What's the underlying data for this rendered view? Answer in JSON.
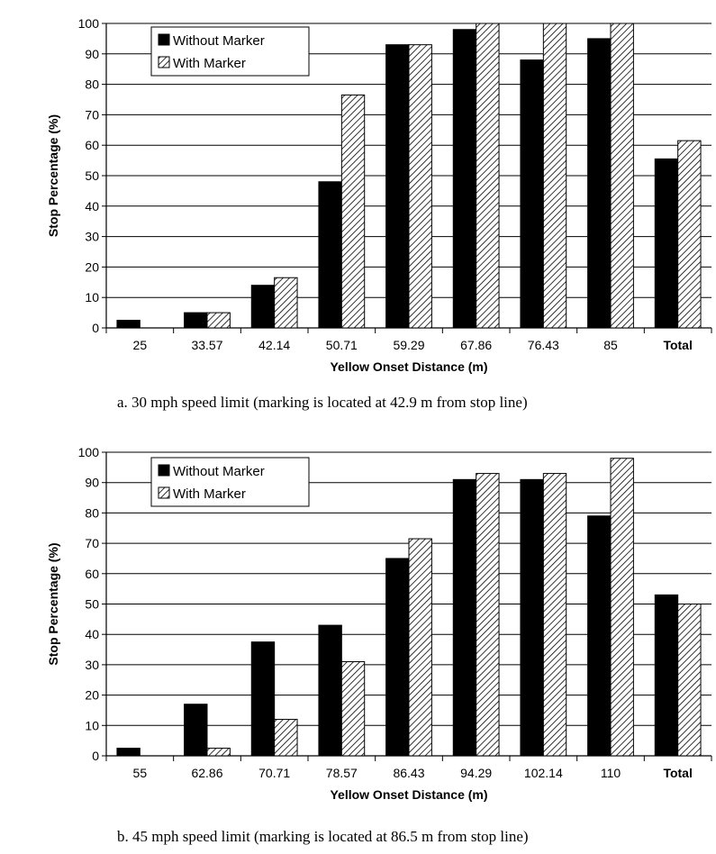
{
  "chart_data": [
    {
      "type": "bar",
      "caption": "a. 30 mph speed limit (marking is located at 42.9 m from stop line)",
      "xlabel": "Yellow Onset Distance (m)",
      "ylabel": "Stop Percentage (%)",
      "ylim": [
        0,
        100
      ],
      "yticks": [
        0,
        10,
        20,
        30,
        40,
        50,
        60,
        70,
        80,
        90,
        100
      ],
      "grid": true,
      "legend_position": "top-left",
      "categories": [
        "25",
        "33.57",
        "42.14",
        "50.71",
        "59.29",
        "67.86",
        "76.43",
        "85",
        "Total"
      ],
      "series": [
        {
          "name": "Without Marker",
          "color": "#000000",
          "pattern": "solid",
          "values": [
            2.5,
            5,
            14,
            48,
            93,
            98,
            88,
            95,
            55.5
          ]
        },
        {
          "name": "With Marker",
          "color": "#ffffff",
          "pattern": "diagonal-hatch",
          "values": [
            0,
            5,
            16.5,
            76.5,
            93,
            100,
            100,
            100,
            61.5
          ]
        }
      ]
    },
    {
      "type": "bar",
      "caption": "b. 45 mph speed limit (marking is located at 86.5 m from stop line)",
      "xlabel": "Yellow Onset Distance (m)",
      "ylabel": "Stop Percentage (%)",
      "ylim": [
        0,
        100
      ],
      "yticks": [
        0,
        10,
        20,
        30,
        40,
        50,
        60,
        70,
        80,
        90,
        100
      ],
      "grid": true,
      "legend_position": "top-left",
      "categories": [
        "55",
        "62.86",
        "70.71",
        "78.57",
        "86.43",
        "94.29",
        "102.14",
        "110",
        "Total"
      ],
      "series": [
        {
          "name": "Without Marker",
          "color": "#000000",
          "pattern": "solid",
          "values": [
            2.5,
            17,
            37.5,
            43,
            65,
            91,
            91,
            79,
            53
          ]
        },
        {
          "name": "With Marker",
          "color": "#ffffff",
          "pattern": "diagonal-hatch",
          "values": [
            0,
            2.5,
            12,
            31,
            71.5,
            93,
            93,
            98,
            50
          ]
        }
      ]
    }
  ]
}
